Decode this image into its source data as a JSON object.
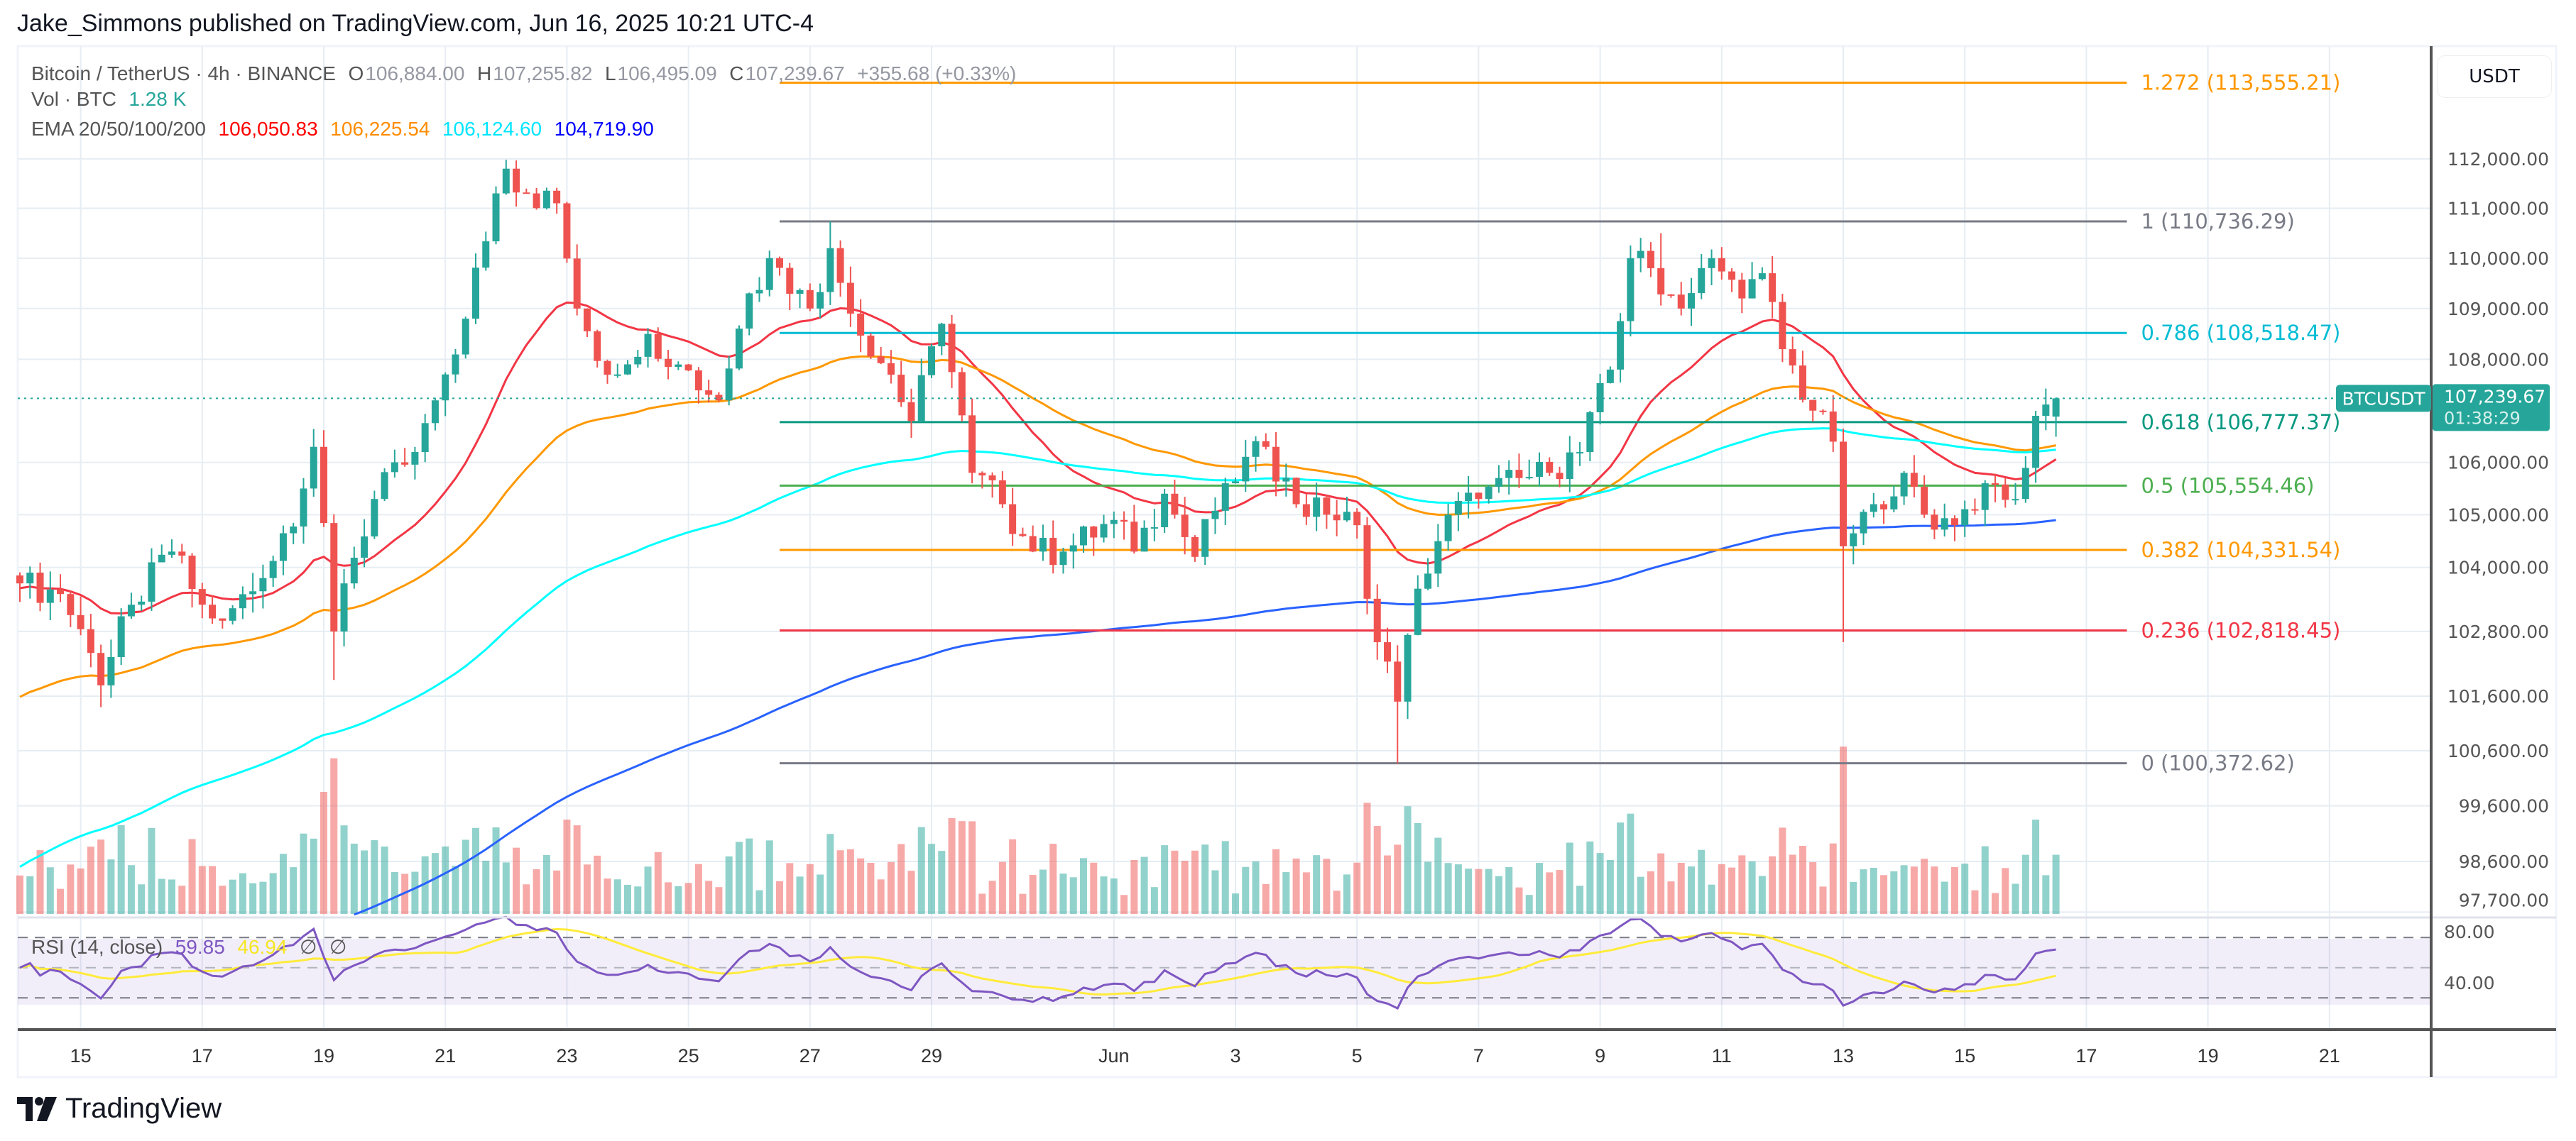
{
  "publish_line": "Jake_Simmons published on TradingView.com, Jun 16, 2025 10:21 UTC-4",
  "legend": {
    "symbol": "Bitcoin / TetherUS · 4h · BINANCE",
    "o_label": "O",
    "open": "106,884.00",
    "h_label": "H",
    "high": "107,255.82",
    "l_label": "L",
    "low": "106,495.09",
    "c_label": "C",
    "close": "107,239.67",
    "change": "+355.68 (+0.33%)",
    "vol_label": "Vol · BTC",
    "vol_value": "1.28 K",
    "ema_label": "EMA 20/50/100/200",
    "ema_values": [
      "106,050.83",
      "106,225.54",
      "106,124.60",
      "104,719.90"
    ]
  },
  "rsi_legend": {
    "label": "RSI (14, close)",
    "rsi": "59.85",
    "rsi_ma": "46.94",
    "na1": "∅",
    "na2": "∅"
  },
  "price_axis": {
    "currency": "USDT",
    "ticks": [
      "112,000.00",
      "111,000.00",
      "110,000.00",
      "109,000.00",
      "108,000.00",
      "106,000.00",
      "105,000.00",
      "104,000.00",
      "102,800.00",
      "101,600.00",
      "100,600.00",
      "99,600.00",
      "98,600.00",
      "97,700.00"
    ],
    "symbol_tag": "BTCUSDT",
    "last_price": "107,239.67",
    "countdown": "01:38:29"
  },
  "rsi_axis": {
    "ticks": [
      "80.00",
      "40.00"
    ],
    "upper_band": 70,
    "middle": 50,
    "lower_band": 30
  },
  "date_axis": [
    {
      "date": "2025-05-15",
      "label": "15"
    },
    {
      "date": "2025-05-17",
      "label": "17"
    },
    {
      "date": "2025-05-19",
      "label": "19"
    },
    {
      "date": "2025-05-21",
      "label": "21"
    },
    {
      "date": "2025-05-23",
      "label": "23"
    },
    {
      "date": "2025-05-25",
      "label": "25"
    },
    {
      "date": "2025-05-27",
      "label": "27"
    },
    {
      "date": "2025-05-29",
      "label": "29"
    },
    {
      "date": "2025-06-01",
      "label": "Jun"
    },
    {
      "date": "2025-06-03",
      "label": "3"
    },
    {
      "date": "2025-06-05",
      "label": "5"
    },
    {
      "date": "2025-06-07",
      "label": "7"
    },
    {
      "date": "2025-06-09",
      "label": "9"
    },
    {
      "date": "2025-06-11",
      "label": "11"
    },
    {
      "date": "2025-06-13",
      "label": "13"
    },
    {
      "date": "2025-06-15",
      "label": "15"
    },
    {
      "date": "2025-06-17",
      "label": "17"
    },
    {
      "date": "2025-06-19",
      "label": "19"
    },
    {
      "date": "2025-06-21",
      "label": "21"
    }
  ],
  "fib_levels": {
    "start": "2025-05-26 12:00",
    "end": "2025-06-17 16:00",
    "levels": [
      {
        "ratio": "1.272",
        "price": 113555.21,
        "label": "1.272 (113,555.21)",
        "color": "#ff9800"
      },
      {
        "ratio": "1",
        "price": 110736.29,
        "label": "1 (110,736.29)",
        "color": "#787b86"
      },
      {
        "ratio": "0.786",
        "price": 108518.47,
        "label": "0.786 (108,518.47)",
        "color": "#00bcd4"
      },
      {
        "ratio": "0.618",
        "price": 106777.37,
        "label": "0.618 (106,777.37)",
        "color": "#089981"
      },
      {
        "ratio": "0.5",
        "price": 105554.46,
        "label": "0.5 (105,554.46)",
        "color": "#4caf50"
      },
      {
        "ratio": "0.382",
        "price": 104331.54,
        "label": "0.382 (104,331.54)",
        "color": "#ff9800"
      },
      {
        "ratio": "0.236",
        "price": 102818.45,
        "label": "0.236 (102,818.45)",
        "color": "#f23645"
      },
      {
        "ratio": "0",
        "price": 100372.62,
        "label": "0 (100,372.62)",
        "color": "#787b86"
      }
    ]
  },
  "chart_data": {
    "type": "candlestick",
    "symbol": "BTCUSDT",
    "interval": "4h",
    "y_scale": "log",
    "ylim": [
      97700,
      114000
    ],
    "xlim": [
      "2025-05-14",
      "2025-06-22"
    ],
    "grid": true,
    "close_path": [
      [
        "2025-05-14 00:00",
        103700
      ],
      [
        "2025-05-14 16:00",
        103500
      ],
      [
        "2025-05-15 04:00",
        102400
      ],
      [
        "2025-05-15 08:00",
        101800
      ],
      [
        "2025-05-15 20:00",
        103300
      ],
      [
        "2025-05-16 12:00",
        104300
      ],
      [
        "2025-05-17 00:00",
        103300
      ],
      [
        "2025-05-17 08:00",
        103000
      ],
      [
        "2025-05-18 00:00",
        103800
      ],
      [
        "2025-05-18 16:00",
        105500
      ],
      [
        "2025-05-18 20:00",
        106300
      ],
      [
        "2025-05-19 04:00",
        102800
      ],
      [
        "2025-05-19 08:00",
        103700
      ],
      [
        "2025-05-19 20:00",
        105300
      ],
      [
        "2025-05-20 12:00",
        106200
      ],
      [
        "2025-05-20 20:00",
        107200
      ],
      [
        "2025-05-21 08:00",
        108800
      ],
      [
        "2025-05-21 20:00",
        111300
      ],
      [
        "2025-05-22 00:00",
        111800
      ],
      [
        "2025-05-22 08:00",
        111300
      ],
      [
        "2025-05-22 20:00",
        111100
      ],
      [
        "2025-05-23 04:00",
        109000
      ],
      [
        "2025-05-23 16:00",
        107700
      ],
      [
        "2025-05-24 08:00",
        108500
      ],
      [
        "2025-05-24 20:00",
        107900
      ],
      [
        "2025-05-25 12:00",
        107200
      ],
      [
        "2025-05-26 00:00",
        109300
      ],
      [
        "2025-05-26 08:00",
        110000
      ],
      [
        "2025-05-27 00:00",
        109000
      ],
      [
        "2025-05-27 08:00",
        110200
      ],
      [
        "2025-05-27 16:00",
        108900
      ],
      [
        "2025-05-28 08:00",
        107700
      ],
      [
        "2025-05-28 16:00",
        106800
      ],
      [
        "2025-05-29 04:00",
        108700
      ],
      [
        "2025-05-29 16:00",
        105800
      ],
      [
        "2025-05-30 04:00",
        105200
      ],
      [
        "2025-05-30 16:00",
        104300
      ],
      [
        "2025-05-31 04:00",
        104300
      ],
      [
        "2025-06-01 00:00",
        104900
      ],
      [
        "2025-06-01 08:00",
        104300
      ],
      [
        "2025-06-01 20:00",
        105400
      ],
      [
        "2025-06-02 08:00",
        104200
      ],
      [
        "2025-06-02 20:00",
        105600
      ],
      [
        "2025-06-03 12:00",
        106300
      ],
      [
        "2025-06-04 00:00",
        105200
      ],
      [
        "2025-06-04 12:00",
        105000
      ],
      [
        "2025-06-05 00:00",
        104800
      ],
      [
        "2025-06-05 08:00",
        102600
      ],
      [
        "2025-06-05 16:00",
        101500
      ],
      [
        "2025-06-06 00:00",
        103600
      ],
      [
        "2025-06-06 12:00",
        105000
      ],
      [
        "2025-06-07 00:00",
        105300
      ],
      [
        "2025-06-07 16:00",
        105700
      ],
      [
        "2025-06-08 04:00",
        105800
      ],
      [
        "2025-06-08 16:00",
        106200
      ],
      [
        "2025-06-09 04:00",
        107800
      ],
      [
        "2025-06-09 12:00",
        110000
      ],
      [
        "2025-06-09 20:00",
        109800
      ],
      [
        "2025-06-10 08:00",
        109000
      ],
      [
        "2025-06-10 20:00",
        110000
      ],
      [
        "2025-06-11 08:00",
        109200
      ],
      [
        "2025-06-11 16:00",
        109700
      ],
      [
        "2025-06-12 00:00",
        108200
      ],
      [
        "2025-06-12 12:00",
        107000
      ],
      [
        "2025-06-12 20:00",
        106400
      ],
      [
        "2025-06-13 00:00",
        104400
      ],
      [
        "2025-06-13 12:00",
        105200
      ],
      [
        "2025-06-14 00:00",
        105800
      ],
      [
        "2025-06-14 08:00",
        105000
      ],
      [
        "2025-06-14 20:00",
        104800
      ],
      [
        "2025-06-15 08:00",
        105600
      ],
      [
        "2025-06-15 20:00",
        105300
      ],
      [
        "2025-06-16 04:00",
        106900
      ],
      [
        "2025-06-16 12:00",
        107239.67
      ]
    ],
    "extremes": [
      {
        "time": "2025-05-15 08:00",
        "low": 101400
      },
      {
        "time": "2025-05-19 04:00",
        "low": 101900
      },
      {
        "time": "2025-05-22 00:00",
        "high": 111980
      },
      {
        "time": "2025-05-27 08:00",
        "high": 110736.29
      },
      {
        "time": "2025-06-05 16:00",
        "low": 100372.62
      },
      {
        "time": "2025-06-10 00:00",
        "high": 110500
      },
      {
        "time": "2025-06-13 00:00",
        "low": 102600
      }
    ],
    "last_candle": {
      "open": 106884.0,
      "high": 107255.82,
      "low": 106495.09,
      "close": 107239.67
    },
    "ema_start_values": {
      "ema20": 103600,
      "ema50": 101500,
      "ema100": 98400,
      "ema200": 95200
    },
    "series": [
      {
        "name": "EMA 20",
        "color": "#f23645",
        "last": 106050.83
      },
      {
        "name": "EMA 50",
        "color": "#ff9800",
        "last": 106225.54
      },
      {
        "name": "EMA 100",
        "color": "#00ffff",
        "last": 106124.6
      },
      {
        "name": "EMA 200",
        "color": "#2962ff",
        "last": 104719.9
      }
    ],
    "rsi": {
      "period": 14,
      "last": 59.85,
      "ma_last": 46.94,
      "color": "#7e57c2",
      "ma_color": "#ffeb3b"
    }
  },
  "colors": {
    "up": "#26a69a",
    "down": "#ef5350",
    "grid": "#e6edf3",
    "axis_text": "#555555"
  },
  "branding": {
    "logo_text": "TradingView"
  }
}
